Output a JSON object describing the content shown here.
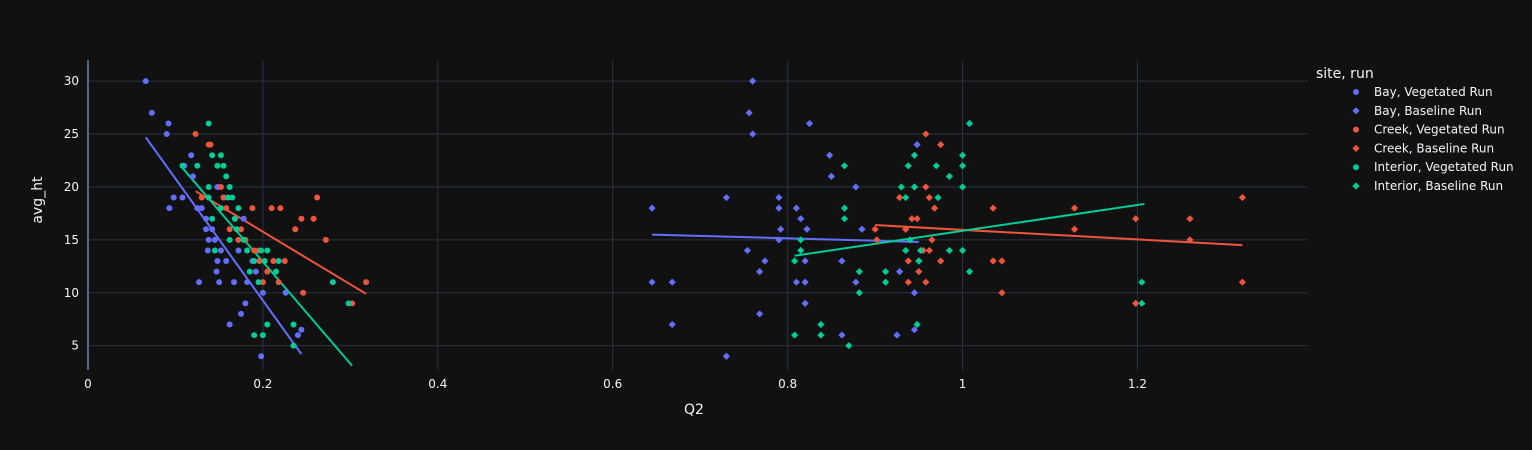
{
  "chart_data": {
    "type": "scatter",
    "title": "",
    "xlabel": "Q2",
    "ylabel": "avg_ht",
    "xlim": [
      0,
      1.395
    ],
    "ylim": [
      2.7,
      32
    ],
    "xticks": [
      0,
      0.2,
      0.4,
      0.6,
      0.8,
      1,
      1.2
    ],
    "xtick_labels": [
      "0",
      "0.2",
      "0.4",
      "0.6",
      "0.8",
      "1",
      "1.2"
    ],
    "yticks": [
      5,
      10,
      15,
      20,
      25,
      30
    ],
    "ytick_labels": [
      "5",
      "10",
      "15",
      "20",
      "25",
      "30"
    ],
    "grid": true,
    "background": "#111111",
    "legend": {
      "title": "site, run",
      "position": "right"
    },
    "series": [
      {
        "name": "Bay, Vegetated Run",
        "color": "#636efa",
        "marker": "circle",
        "points": [
          [
            0.066,
            30
          ],
          [
            0.073,
            27
          ],
          [
            0.092,
            26
          ],
          [
            0.09,
            25
          ],
          [
            0.118,
            23
          ],
          [
            0.12,
            21
          ],
          [
            0.098,
            19
          ],
          [
            0.108,
            19
          ],
          [
            0.093,
            18
          ],
          [
            0.125,
            18
          ],
          [
            0.13,
            18
          ],
          [
            0.135,
            17
          ],
          [
            0.135,
            16
          ],
          [
            0.142,
            16
          ],
          [
            0.148,
            20
          ],
          [
            0.155,
            19
          ],
          [
            0.138,
            15
          ],
          [
            0.145,
            15
          ],
          [
            0.137,
            14
          ],
          [
            0.152,
            14
          ],
          [
            0.148,
            13
          ],
          [
            0.158,
            13
          ],
          [
            0.147,
            12
          ],
          [
            0.15,
            11
          ],
          [
            0.167,
            11
          ],
          [
            0.162,
            7
          ],
          [
            0.175,
            8
          ],
          [
            0.18,
            9
          ],
          [
            0.182,
            11
          ],
          [
            0.192,
            12
          ],
          [
            0.2,
            10
          ],
          [
            0.198,
            4
          ],
          [
            0.172,
            14
          ],
          [
            0.178,
            17
          ],
          [
            0.188,
            13
          ],
          [
            0.226,
            10
          ],
          [
            0.24,
            6
          ],
          [
            0.244,
            6.5
          ],
          [
            0.11,
            22
          ],
          [
            0.127,
            11
          ]
        ],
        "trend": [
          [
            0.066,
            24.7
          ],
          [
            0.244,
            4.2
          ]
        ]
      },
      {
        "name": "Bay, Baseline Run",
        "color": "#636efa",
        "marker": "diamond",
        "points": [
          [
            0.645,
            18
          ],
          [
            0.645,
            11
          ],
          [
            0.668,
            11
          ],
          [
            0.668,
            7
          ],
          [
            0.73,
            4
          ],
          [
            0.73,
            19
          ],
          [
            0.754,
            14
          ],
          [
            0.756,
            27
          ],
          [
            0.76,
            30
          ],
          [
            0.76,
            25
          ],
          [
            0.768,
            8
          ],
          [
            0.768,
            12
          ],
          [
            0.774,
            13
          ],
          [
            0.79,
            19
          ],
          [
            0.79,
            18
          ],
          [
            0.792,
            16
          ],
          [
            0.79,
            15
          ],
          [
            0.81,
            18
          ],
          [
            0.81,
            11
          ],
          [
            0.815,
            17
          ],
          [
            0.82,
            9
          ],
          [
            0.82,
            11
          ],
          [
            0.82,
            13
          ],
          [
            0.822,
            16
          ],
          [
            0.825,
            26
          ],
          [
            0.848,
            23
          ],
          [
            0.85,
            21
          ],
          [
            0.862,
            6
          ],
          [
            0.862,
            13
          ],
          [
            0.878,
            20
          ],
          [
            0.878,
            11
          ],
          [
            0.885,
            16
          ],
          [
            0.925,
            6
          ],
          [
            0.928,
            12
          ],
          [
            0.945,
            10
          ],
          [
            0.945,
            6.5
          ],
          [
            0.948,
            24
          ],
          [
            0.95,
            13
          ]
        ],
        "trend": [
          [
            0.645,
            15.5
          ],
          [
            0.95,
            14.8
          ]
        ]
      },
      {
        "name": "Creek, Vegetated Run",
        "color": "#ef553b",
        "marker": "circle",
        "points": [
          [
            0.123,
            25
          ],
          [
            0.138,
            24
          ],
          [
            0.14,
            24
          ],
          [
            0.13,
            19
          ],
          [
            0.152,
            20
          ],
          [
            0.155,
            19
          ],
          [
            0.158,
            18
          ],
          [
            0.162,
            16
          ],
          [
            0.168,
            17
          ],
          [
            0.172,
            15
          ],
          [
            0.175,
            16
          ],
          [
            0.18,
            15
          ],
          [
            0.188,
            18
          ],
          [
            0.19,
            14
          ],
          [
            0.196,
            13
          ],
          [
            0.2,
            11
          ],
          [
            0.205,
            12
          ],
          [
            0.21,
            18
          ],
          [
            0.218,
            11
          ],
          [
            0.22,
            18
          ],
          [
            0.225,
            13
          ],
          [
            0.237,
            16
          ],
          [
            0.244,
            17
          ],
          [
            0.246,
            10
          ],
          [
            0.258,
            17
          ],
          [
            0.262,
            19
          ],
          [
            0.272,
            15
          ],
          [
            0.302,
            9
          ],
          [
            0.318,
            11
          ],
          [
            0.195,
            14
          ],
          [
            0.212,
            13
          ]
        ],
        "trend": [
          [
            0.123,
            19.6
          ],
          [
            0.318,
            9.9
          ]
        ]
      },
      {
        "name": "Creek, Baseline Run",
        "color": "#ef553b",
        "marker": "diamond",
        "points": [
          [
            0.9,
            16
          ],
          [
            0.902,
            15
          ],
          [
            0.928,
            19
          ],
          [
            0.935,
            16
          ],
          [
            0.938,
            13
          ],
          [
            0.938,
            11
          ],
          [
            0.942,
            17
          ],
          [
            0.945,
            20
          ],
          [
            0.948,
            17
          ],
          [
            0.95,
            12
          ],
          [
            0.955,
            14
          ],
          [
            0.958,
            25
          ],
          [
            0.958,
            20
          ],
          [
            0.958,
            11
          ],
          [
            0.962,
            19
          ],
          [
            0.962,
            14
          ],
          [
            0.965,
            15
          ],
          [
            0.968,
            18
          ],
          [
            0.975,
            24
          ],
          [
            0.975,
            13
          ],
          [
            1.035,
            18
          ],
          [
            1.035,
            13
          ],
          [
            1.045,
            13
          ],
          [
            1.045,
            10
          ],
          [
            1.128,
            18
          ],
          [
            1.128,
            16
          ],
          [
            1.198,
            17
          ],
          [
            1.198,
            9
          ],
          [
            1.26,
            17
          ],
          [
            1.26,
            15
          ],
          [
            1.32,
            19
          ],
          [
            1.32,
            11
          ]
        ],
        "trend": [
          [
            0.9,
            16.4
          ],
          [
            1.32,
            14.5
          ]
        ]
      },
      {
        "name": "Interior, Vegetated Run",
        "color": "#00cc96",
        "marker": "circle",
        "points": [
          [
            0.108,
            22
          ],
          [
            0.125,
            22
          ],
          [
            0.138,
            26
          ],
          [
            0.138,
            20
          ],
          [
            0.142,
            23
          ],
          [
            0.148,
            22
          ],
          [
            0.152,
            23
          ],
          [
            0.155,
            22
          ],
          [
            0.158,
            21
          ],
          [
            0.162,
            20
          ],
          [
            0.165,
            19
          ],
          [
            0.168,
            17
          ],
          [
            0.17,
            16
          ],
          [
            0.172,
            18
          ],
          [
            0.178,
            15
          ],
          [
            0.182,
            14
          ],
          [
            0.185,
            12
          ],
          [
            0.19,
            6
          ],
          [
            0.19,
            13
          ],
          [
            0.195,
            11
          ],
          [
            0.198,
            14
          ],
          [
            0.2,
            6
          ],
          [
            0.202,
            13
          ],
          [
            0.205,
            14
          ],
          [
            0.205,
            7
          ],
          [
            0.215,
            12
          ],
          [
            0.218,
            13
          ],
          [
            0.235,
            7
          ],
          [
            0.235,
            5
          ],
          [
            0.28,
            11
          ],
          [
            0.298,
            9
          ],
          [
            0.142,
            17
          ],
          [
            0.145,
            14
          ],
          [
            0.152,
            18
          ],
          [
            0.16,
            19
          ],
          [
            0.162,
            15
          ],
          [
            0.138,
            19
          ]
        ],
        "trend": [
          [
            0.108,
            21.8
          ],
          [
            0.302,
            3.1
          ]
        ]
      },
      {
        "name": "Interior, Baseline Run",
        "color": "#00cc96",
        "marker": "diamond",
        "points": [
          [
            0.808,
            6
          ],
          [
            0.808,
            13
          ],
          [
            0.815,
            15
          ],
          [
            0.815,
            14
          ],
          [
            0.838,
            7
          ],
          [
            0.838,
            6
          ],
          [
            0.865,
            22
          ],
          [
            0.865,
            18
          ],
          [
            0.865,
            17
          ],
          [
            0.87,
            5
          ],
          [
            0.882,
            10
          ],
          [
            0.882,
            12
          ],
          [
            0.912,
            12
          ],
          [
            0.912,
            11
          ],
          [
            0.93,
            20
          ],
          [
            0.935,
            14
          ],
          [
            0.935,
            19
          ],
          [
            0.938,
            22
          ],
          [
            0.94,
            15
          ],
          [
            0.945,
            23
          ],
          [
            0.945,
            20
          ],
          [
            0.948,
            7
          ],
          [
            0.95,
            13
          ],
          [
            0.952,
            14
          ],
          [
            0.97,
            22
          ],
          [
            0.972,
            19
          ],
          [
            0.985,
            21
          ],
          [
            0.985,
            14
          ],
          [
            1,
            23
          ],
          [
            1,
            22
          ],
          [
            1,
            20
          ],
          [
            1,
            14
          ],
          [
            1.008,
            26
          ],
          [
            1.008,
            12
          ],
          [
            1.205,
            11
          ],
          [
            1.205,
            9
          ]
        ],
        "trend": [
          [
            0.808,
            13.5
          ],
          [
            1.208,
            18.4
          ]
        ]
      }
    ]
  }
}
